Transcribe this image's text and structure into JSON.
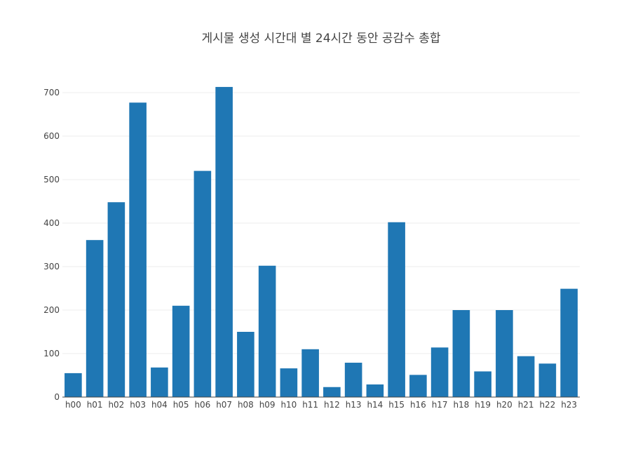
{
  "chart_data": {
    "type": "bar",
    "title": "게시물 생성 시간대 별 24시간 동안 공감수 총합",
    "xlabel": "",
    "ylabel": "",
    "categories": [
      "h00",
      "h01",
      "h02",
      "h03",
      "h04",
      "h05",
      "h06",
      "h07",
      "h08",
      "h09",
      "h10",
      "h11",
      "h12",
      "h13",
      "h14",
      "h15",
      "h16",
      "h17",
      "h18",
      "h19",
      "h20",
      "h21",
      "h22",
      "h23"
    ],
    "values": [
      55,
      361,
      448,
      677,
      68,
      210,
      520,
      713,
      150,
      302,
      66,
      110,
      23,
      79,
      29,
      402,
      51,
      114,
      200,
      59,
      200,
      94,
      77,
      249
    ],
    "ylim": [
      0,
      750
    ],
    "yticks": [
      0,
      100,
      200,
      300,
      400,
      500,
      600,
      700
    ],
    "grid": true,
    "colors": {
      "bar": "#1f77b4",
      "grid": "#eeeeee",
      "axis": "#444444"
    }
  }
}
